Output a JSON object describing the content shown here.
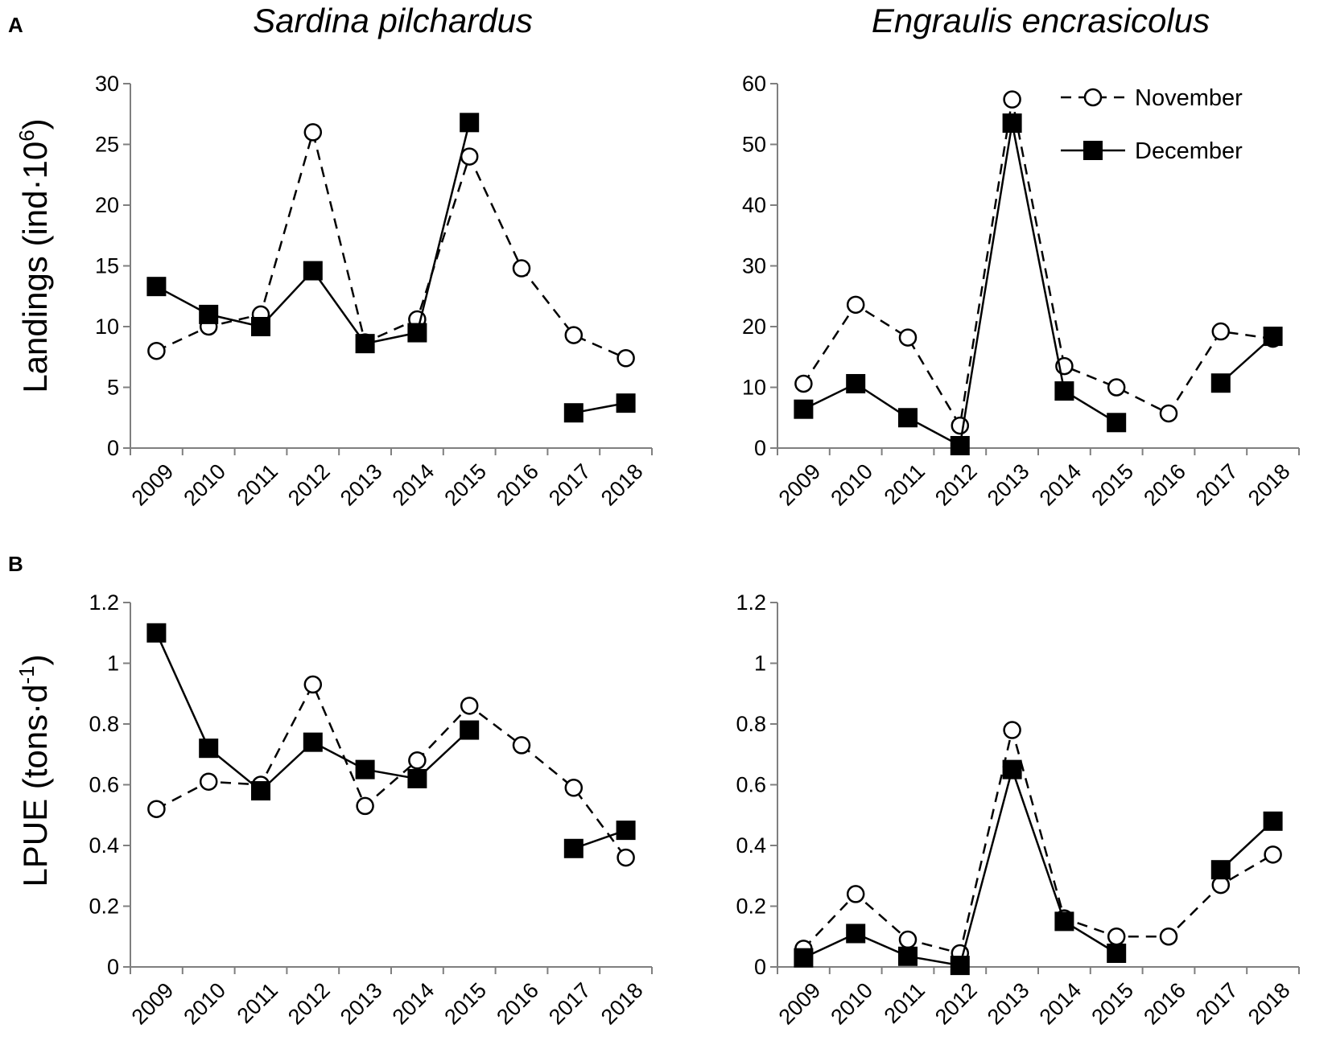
{
  "figure": {
    "panel_a_letter": "A",
    "panel_b_letter": "B",
    "species_left": "Sardina pilchardus",
    "species_right": "Engraulis encrasicolus",
    "ylabel_top": "Landings (ind·10",
    "ylabel_top_sup": "6",
    "ylabel_top_close": ")",
    "ylabel_bottom": "LPUE (tons·d",
    "ylabel_bottom_sup": "-1",
    "ylabel_bottom_close": ")"
  },
  "legend": {
    "november": "November",
    "december": "December"
  },
  "colors": {
    "line": "#000000",
    "axis": "#7f7f7f",
    "open_marker_fill": "#ffffff"
  },
  "chart_data": [
    {
      "id": "A-left",
      "type": "line",
      "title": "Sardina pilchardus",
      "ylabel": "Landings (ind·10^6)",
      "categories": [
        "2009",
        "2010",
        "2011",
        "2012",
        "2013",
        "2014",
        "2015",
        "2016",
        "2017",
        "2018"
      ],
      "ylim": [
        0,
        30
      ],
      "yticks": [
        0,
        5,
        10,
        15,
        20,
        25,
        30
      ],
      "series": [
        {
          "name": "November",
          "style": "dashed-open-circle",
          "values": [
            8.0,
            10.0,
            11.0,
            26.0,
            8.7,
            10.6,
            24.0,
            14.8,
            9.3,
            7.4
          ]
        },
        {
          "name": "December",
          "style": "solid-filled-square",
          "values": [
            13.3,
            11.0,
            10.0,
            14.6,
            8.6,
            9.5,
            26.8,
            null,
            2.9,
            3.7
          ]
        }
      ]
    },
    {
      "id": "A-right",
      "type": "line",
      "title": "Engraulis encrasicolus",
      "ylabel": "Landings (ind·10^6)",
      "categories": [
        "2009",
        "2010",
        "2011",
        "2012",
        "2013",
        "2014",
        "2015",
        "2016",
        "2017",
        "2018"
      ],
      "ylim": [
        0,
        60
      ],
      "yticks": [
        0,
        10,
        20,
        30,
        40,
        50,
        60
      ],
      "series": [
        {
          "name": "November",
          "style": "dashed-open-circle",
          "values": [
            10.6,
            23.6,
            18.2,
            3.7,
            57.4,
            13.5,
            10.0,
            5.7,
            19.2,
            18.0
          ]
        },
        {
          "name": "December",
          "style": "solid-filled-square",
          "values": [
            6.4,
            10.6,
            5.0,
            0.4,
            53.5,
            9.4,
            4.2,
            null,
            10.7,
            18.4
          ]
        }
      ]
    },
    {
      "id": "B-left",
      "type": "line",
      "title": "Sardina pilchardus",
      "ylabel": "LPUE (tons·d^-1)",
      "categories": [
        "2009",
        "2010",
        "2011",
        "2012",
        "2013",
        "2014",
        "2015",
        "2016",
        "2017",
        "2018"
      ],
      "ylim": [
        0,
        1.2
      ],
      "yticks": [
        0,
        0.2,
        0.4,
        0.6,
        0.8,
        1,
        1.2
      ],
      "series": [
        {
          "name": "November",
          "style": "dashed-open-circle",
          "values": [
            0.52,
            0.61,
            0.6,
            0.93,
            0.53,
            0.68,
            0.86,
            0.73,
            0.59,
            0.36
          ]
        },
        {
          "name": "December",
          "style": "solid-filled-square",
          "values": [
            1.1,
            0.72,
            0.58,
            0.74,
            0.65,
            0.62,
            0.78,
            null,
            0.39,
            0.45
          ]
        }
      ]
    },
    {
      "id": "B-right",
      "type": "line",
      "title": "Engraulis encrasicolus",
      "ylabel": "LPUE (tons·d^-1)",
      "categories": [
        "2009",
        "2010",
        "2011",
        "2012",
        "2013",
        "2014",
        "2015",
        "2016",
        "2017",
        "2018"
      ],
      "ylim": [
        0,
        1.2
      ],
      "yticks": [
        0,
        0.2,
        0.4,
        0.6,
        0.8,
        1,
        1.2
      ],
      "series": [
        {
          "name": "November",
          "style": "dashed-open-circle",
          "values": [
            0.06,
            0.24,
            0.09,
            0.045,
            0.78,
            0.16,
            0.1,
            0.1,
            0.27,
            0.37
          ]
        },
        {
          "name": "December",
          "style": "solid-filled-square",
          "values": [
            0.03,
            0.11,
            0.035,
            0.005,
            0.65,
            0.15,
            0.045,
            null,
            0.32,
            0.48
          ]
        }
      ]
    }
  ]
}
